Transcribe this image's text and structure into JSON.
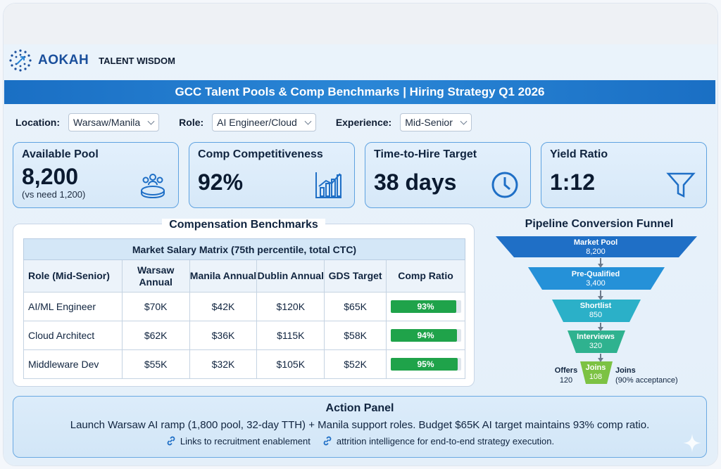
{
  "brand": {
    "name": "AOKAH",
    "sub": "TALENT WISDOM"
  },
  "header": {
    "title": "GCC Talent Pools & Comp Benchmarks | Hiring Strategy Q1 2026"
  },
  "filters": [
    {
      "label": "Location:",
      "value": "Warsaw/Manila"
    },
    {
      "label": "Role:",
      "value": "AI Engineer/Cloud"
    },
    {
      "label": "Experience:",
      "value": "Mid-Senior"
    }
  ],
  "kpis": [
    {
      "title": "Available Pool",
      "value": "8,200",
      "sub": "(vs need 1,200)",
      "icon": "people-group-icon"
    },
    {
      "title": "Comp Competitiveness",
      "value": "92%",
      "sub": "",
      "icon": "bar-chart-icon"
    },
    {
      "title": "Time-to-Hire Target",
      "value": "38 days",
      "sub": "",
      "icon": "clock-icon"
    },
    {
      "title": "Yield Ratio",
      "value": "1:12",
      "sub": "",
      "icon": "filter-icon"
    }
  ],
  "comp": {
    "title": "Compensation Benchmarks",
    "caption": "Market Salary Matrix (75th percentile, total CTC)",
    "headers": [
      "Role (Mid-Senior)",
      "Warsaw Annual",
      "Manila Annual",
      "Dublin Annual",
      "GDS Target",
      "Comp Ratio"
    ],
    "rows": [
      {
        "role": "AI/ML Engineer",
        "warsaw": "$70K",
        "manila": "$42K",
        "dublin": "$120K",
        "gds": "$65K",
        "ratio_label": "93%",
        "ratio": 0.93
      },
      {
        "role": "Cloud Architect",
        "warsaw": "$62K",
        "manila": "$36K",
        "dublin": "$115K",
        "gds": "$58K",
        "ratio_label": "94%",
        "ratio": 0.94
      },
      {
        "role": "Middleware Dev",
        "warsaw": "$55K",
        "manila": "$32K",
        "dublin": "$105K",
        "gds": "$52K",
        "ratio_label": "95%",
        "ratio": 0.95
      }
    ]
  },
  "funnel": {
    "title": "Pipeline Conversion Funnel",
    "stages": [
      {
        "name": "Market Pool",
        "value": "8,200",
        "color": "#1f6fc6"
      },
      {
        "name": "Pre-Qualified",
        "value": "3,400",
        "color": "#2591d8"
      },
      {
        "name": "Shortlist",
        "value": "850",
        "color": "#2bb0c8"
      },
      {
        "name": "Interviews",
        "value": "320",
        "color": "#2fb28f"
      },
      {
        "name": "Joins",
        "value": "108",
        "color": "#7cc243"
      }
    ],
    "offers_label": "Offers",
    "offers_value": "120",
    "joins_label": "Joins",
    "joins_note": "(90% acceptance)"
  },
  "action": {
    "title": "Action Panel",
    "text": "Launch Warsaw AI ramp (1,800 pool, 32-day TTH) + Manila support roles. Budget $65K AI target maintains 93% comp ratio.",
    "link1": "Links to recruitment enablement",
    "link2": "attrition intelligence for end-to-end strategy execution."
  },
  "colors": {
    "accent": "#1a6fc4",
    "green": "#1fa34a",
    "panel": "#d6e8f8"
  }
}
